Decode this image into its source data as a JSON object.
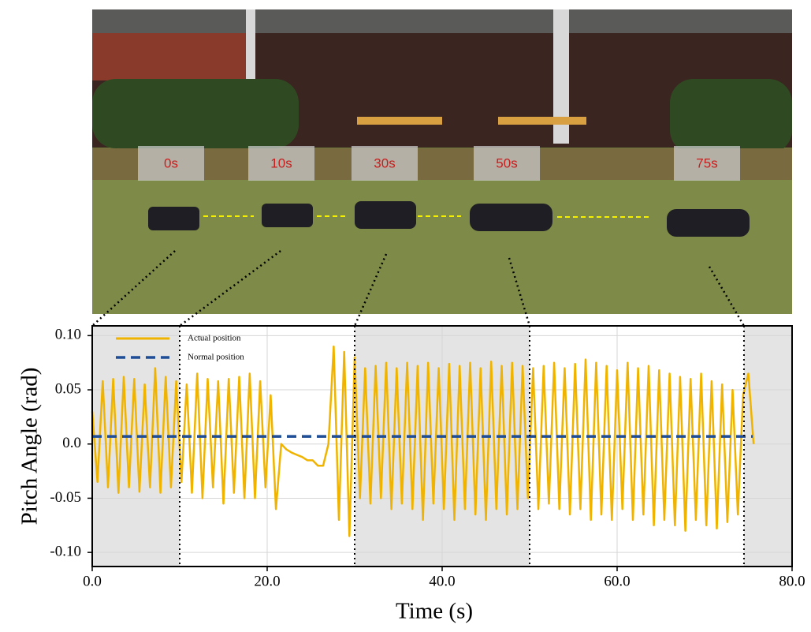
{
  "photo_labels": [
    "0s",
    "10s",
    "30s",
    "50s",
    "75s"
  ],
  "chart_data": {
    "type": "line",
    "xlabel": "Time (s)",
    "ylabel": "Pitch Angle (rad)",
    "xlim": [
      0,
      80
    ],
    "ylim": [
      -0.113,
      0.109
    ],
    "xticks": [
      {
        "value": 0,
        "label": "0.0"
      },
      {
        "value": 20,
        "label": "20.0"
      },
      {
        "value": 40,
        "label": "40.0"
      },
      {
        "value": 60,
        "label": "60.0"
      },
      {
        "value": 80,
        "label": "80.0"
      }
    ],
    "yticks": [
      {
        "value": 0.1,
        "label": "0.10"
      },
      0.05,
      {
        "value": 0,
        "label": "0.0"
      },
      -0.05,
      {
        "value": -0.1,
        "label": "-0.10"
      }
    ],
    "grid": true,
    "legend": "upper left",
    "shaded_regions": [
      [
        0,
        10
      ],
      [
        30,
        50
      ],
      [
        74.5,
        80
      ]
    ],
    "phase_boundaries": [
      10,
      30,
      50,
      74.5
    ],
    "series": [
      {
        "name": "Actual position",
        "color": "#f0b400",
        "dash": false,
        "x": [
          0,
          0.6,
          1.2,
          1.8,
          2.4,
          3,
          3.6,
          4.2,
          4.8,
          5.4,
          6,
          6.6,
          7.2,
          7.8,
          8.4,
          9,
          9.6,
          10.2,
          10.8,
          11.4,
          12,
          12.6,
          13.2,
          13.8,
          14.4,
          15,
          15.6,
          16.2,
          16.8,
          17.4,
          18,
          18.6,
          19.2,
          19.8,
          20.4,
          21,
          21.6,
          22.2,
          22.8,
          23.4,
          24,
          24.6,
          25.2,
          25.8,
          26.4,
          27,
          27.6,
          28.2,
          28.8,
          29.4,
          30,
          30.6,
          31.2,
          31.8,
          32.4,
          33,
          33.6,
          34.2,
          34.8,
          35.4,
          36,
          36.6,
          37.2,
          37.8,
          38.4,
          39,
          39.6,
          40.2,
          40.8,
          41.4,
          42,
          42.6,
          43.2,
          43.8,
          44.4,
          45,
          45.6,
          46.2,
          46.8,
          47.4,
          48,
          48.6,
          49.2,
          49.8,
          50.4,
          51,
          51.6,
          52.2,
          52.8,
          53.4,
          54,
          54.6,
          55.2,
          55.8,
          56.4,
          57,
          57.6,
          58.2,
          58.8,
          59.4,
          60,
          60.6,
          61.2,
          61.8,
          62.4,
          63,
          63.6,
          64.2,
          64.8,
          65.4,
          66,
          66.6,
          67.2,
          67.8,
          68.4,
          69,
          69.6,
          70.2,
          70.8,
          71.4,
          72,
          72.6,
          73.2,
          73.8,
          74.4,
          75,
          75.6
        ],
        "values": [
          0.03,
          -0.035,
          0.058,
          -0.04,
          0.06,
          -0.045,
          0.062,
          -0.04,
          0.06,
          -0.044,
          0.055,
          -0.04,
          0.07,
          -0.045,
          0.062,
          -0.04,
          0.058,
          -0.035,
          0.055,
          -0.045,
          0.065,
          -0.05,
          0.06,
          -0.04,
          0.058,
          -0.055,
          0.06,
          -0.045,
          0.062,
          -0.05,
          0.065,
          -0.05,
          0.058,
          -0.04,
          0.045,
          -0.06,
          0.0,
          -0.005,
          -0.008,
          -0.01,
          -0.012,
          -0.015,
          -0.015,
          -0.02,
          -0.02,
          0.0,
          0.09,
          -0.07,
          0.085,
          -0.085,
          0.08,
          -0.05,
          0.07,
          -0.055,
          0.072,
          -0.05,
          0.075,
          -0.06,
          0.07,
          -0.055,
          0.075,
          -0.06,
          0.072,
          -0.07,
          0.075,
          -0.055,
          0.07,
          -0.06,
          0.074,
          -0.07,
          0.072,
          -0.06,
          0.075,
          -0.065,
          0.07,
          -0.07,
          0.076,
          -0.06,
          0.072,
          -0.065,
          0.075,
          -0.06,
          0.072,
          -0.05,
          0.07,
          -0.06,
          0.072,
          -0.055,
          0.075,
          -0.06,
          0.07,
          -0.065,
          0.074,
          -0.06,
          0.078,
          -0.07,
          0.075,
          -0.065,
          0.072,
          -0.07,
          0.068,
          -0.06,
          0.075,
          -0.07,
          0.07,
          -0.065,
          0.072,
          -0.075,
          0.068,
          -0.07,
          0.065,
          -0.075,
          0.062,
          -0.08,
          0.06,
          -0.07,
          0.065,
          -0.075,
          0.058,
          -0.078,
          0.055,
          -0.072,
          0.05,
          -0.065,
          0.045,
          0.065,
          0.0
        ]
      },
      {
        "name": "Normal position",
        "color": "#1f4e96",
        "dash": true,
        "x": [
          0,
          75.5
        ],
        "values": [
          0.007,
          0.007
        ]
      }
    ]
  }
}
